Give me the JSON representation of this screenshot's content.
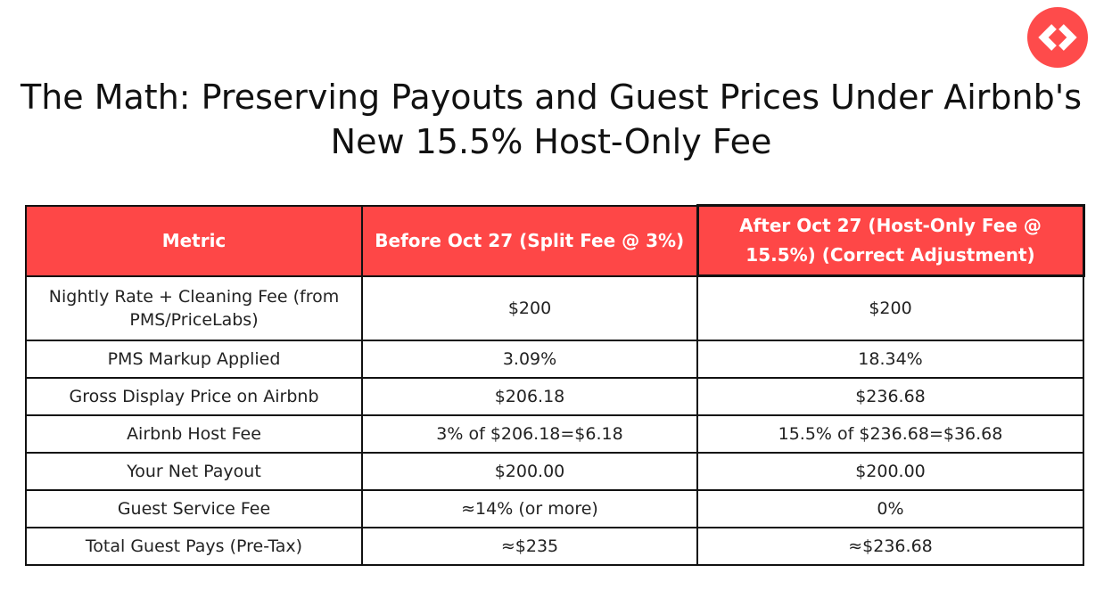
{
  "logo": {
    "icon": "code-brackets-icon",
    "color": "#fe4b4b"
  },
  "title": "The Math: Preserving Payouts and Guest Prices Under Airbnb's New 15.5% Host-Only Fee",
  "table": {
    "header_color": "#fe4747",
    "headers": [
      "Metric",
      "Before Oct 27 (Split Fee @ 3%)",
      "After Oct 27 (Host-Only Fee @ 15.5%) (Correct Adjustment)"
    ],
    "rows": [
      [
        "Nightly Rate + Cleaning Fee (from PMS/PriceLabs)",
        "$200",
        "$200"
      ],
      [
        "PMS Markup Applied",
        "3.09%",
        "18.34%"
      ],
      [
        "Gross Display Price on Airbnb",
        "$206.18",
        "$236.68"
      ],
      [
        "Airbnb Host Fee",
        "3% of $206.18=$6.18",
        "15.5% of $236.68=$36.68"
      ],
      [
        "Your Net Payout",
        "$200.00",
        "$200.00"
      ],
      [
        "Guest Service Fee",
        "≈14% (or more)",
        "0%"
      ],
      [
        "Total Guest Pays (Pre-Tax)",
        "≈$235",
        "≈$236.68"
      ]
    ]
  }
}
